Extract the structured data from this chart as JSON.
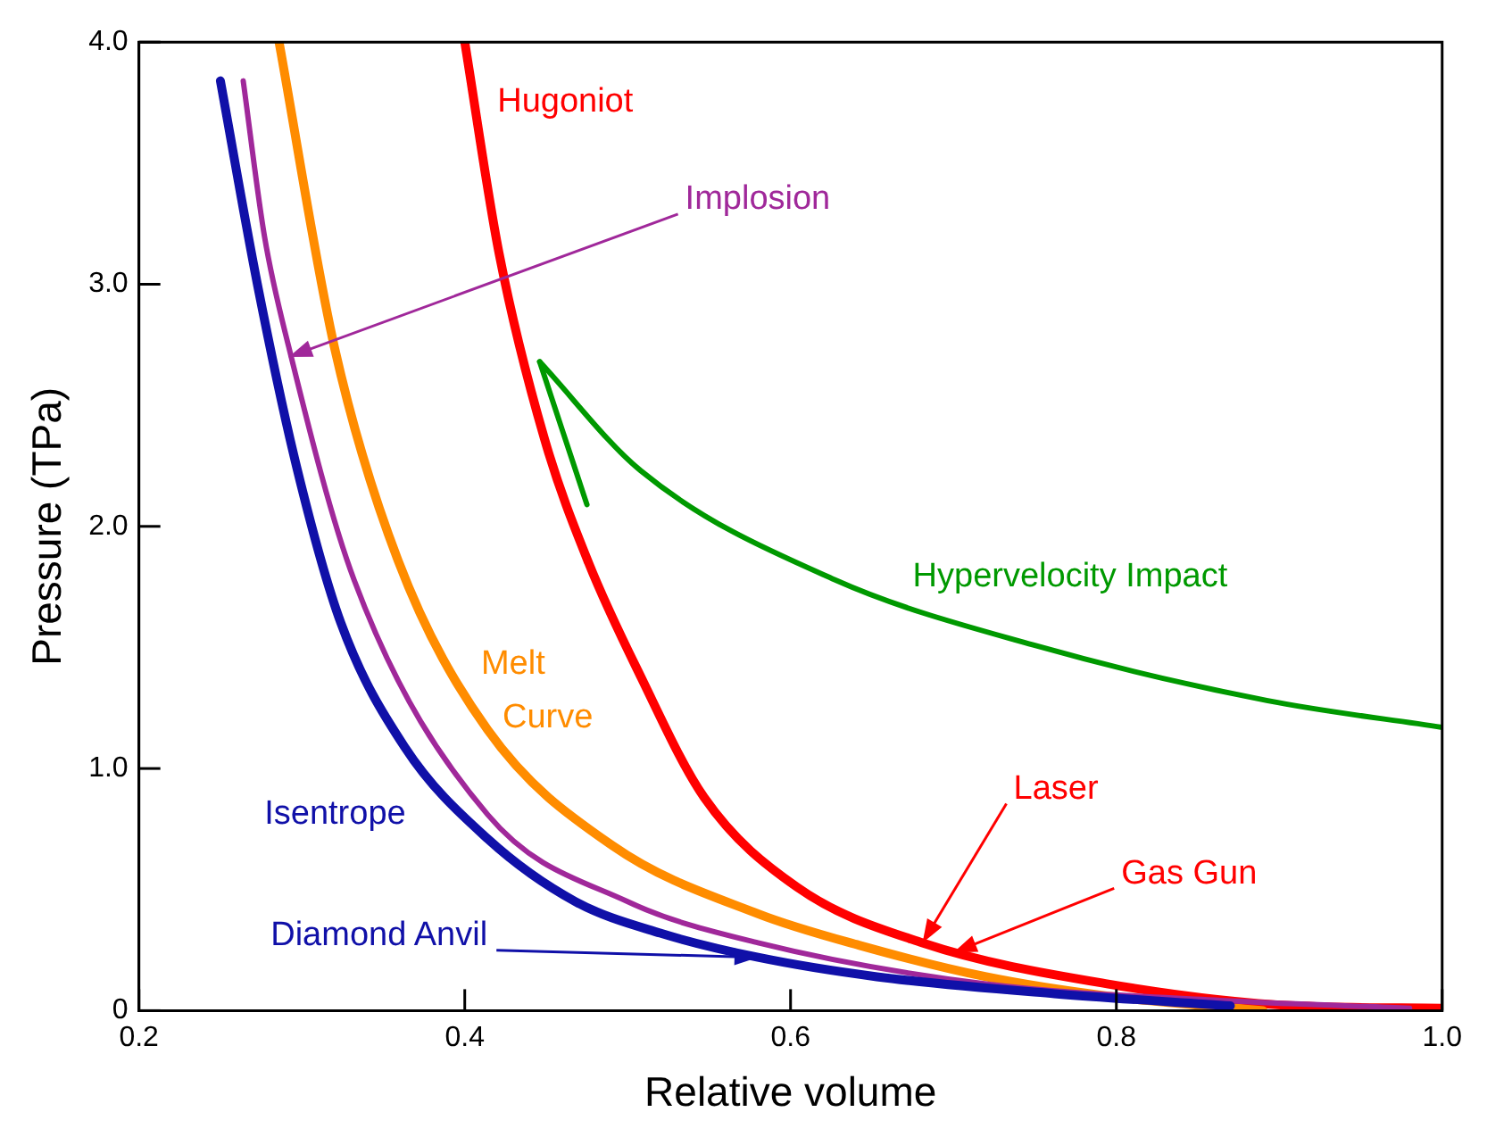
{
  "chart_data": {
    "type": "line",
    "xlabel": "Relative volume",
    "ylabel": "Pressure (TPa)",
    "xlim": [
      0.2,
      1.0
    ],
    "ylim": [
      0,
      4
    ],
    "xticks": [
      0.2,
      0.4,
      0.6,
      0.8,
      {
        "value": 1.0,
        "label": "1.0"
      }
    ],
    "yticks": [
      0,
      {
        "value": 1,
        "label": "1.0"
      },
      {
        "value": 2,
        "label": "2.0"
      },
      {
        "value": 3,
        "label": "3.0"
      },
      {
        "value": 4,
        "label": "4.0"
      }
    ],
    "grid": false,
    "legend": false,
    "marker": "none",
    "line_style": "solid",
    "series": [
      {
        "name": "Isentrope",
        "color": "#1010a8",
        "x": [
          0.25,
          0.273,
          0.297,
          0.324,
          0.363,
          0.414,
          0.468,
          0.52,
          0.58,
          0.653,
          0.762,
          0.87
        ],
        "values": [
          3.84,
          2.99,
          2.24,
          1.6,
          1.09,
          0.71,
          0.45,
          0.32,
          0.22,
          0.14,
          0.07,
          0.02
        ]
      },
      {
        "color": "#a0289a",
        "x": [
          0.264,
          0.277,
          0.292,
          0.332,
          0.414,
          0.5,
          0.58,
          0.72,
          0.87,
          0.98
        ],
        "values": [
          3.84,
          3.2,
          2.74,
          1.78,
          0.81,
          0.45,
          0.28,
          0.11,
          0.04,
          0.01
        ]
      },
      {
        "name": "Melt Curve",
        "color": "#ff8c00",
        "x": [
          0.286,
          0.32,
          0.359,
          0.414,
          0.491,
          0.58,
          0.642,
          0.72,
          0.795,
          0.89
        ],
        "values": [
          4.0,
          2.74,
          1.86,
          1.16,
          0.68,
          0.4,
          0.27,
          0.14,
          0.06,
          0.0
        ]
      },
      {
        "name": "Hugoniot",
        "color": "#ff0000",
        "x": [
          0.4,
          0.421,
          0.449,
          0.476,
          0.508,
          0.547,
          0.604,
          0.681,
          0.795,
          0.91,
          1.0
        ],
        "values": [
          4.0,
          3.13,
          2.36,
          1.85,
          1.38,
          0.88,
          0.51,
          0.28,
          0.11,
          0.02,
          0.01
        ]
      },
      {
        "name": "Hypervelocity Impact",
        "color": "#009900",
        "x": [
          0.446,
          0.508,
          0.627,
          0.749,
          0.893,
          1.0
        ],
        "values": [
          2.68,
          2.23,
          1.78,
          1.51,
          1.28,
          1.17
        ]
      },
      {
        "color": "#009900",
        "x": [
          0.446,
          0.475
        ],
        "values": [
          2.68,
          2.09
        ]
      }
    ],
    "annotations": [
      {
        "text": "Implosion",
        "x": 0.292,
        "y": 2.7
      },
      {
        "text": "Laser",
        "x": 0.681,
        "y": 0.28
      },
      {
        "text": "Gas Gun",
        "x": 0.7,
        "y": 0.24
      },
      {
        "text": "Diamond Anvil",
        "x": 0.58,
        "y": 0.22
      }
    ]
  }
}
